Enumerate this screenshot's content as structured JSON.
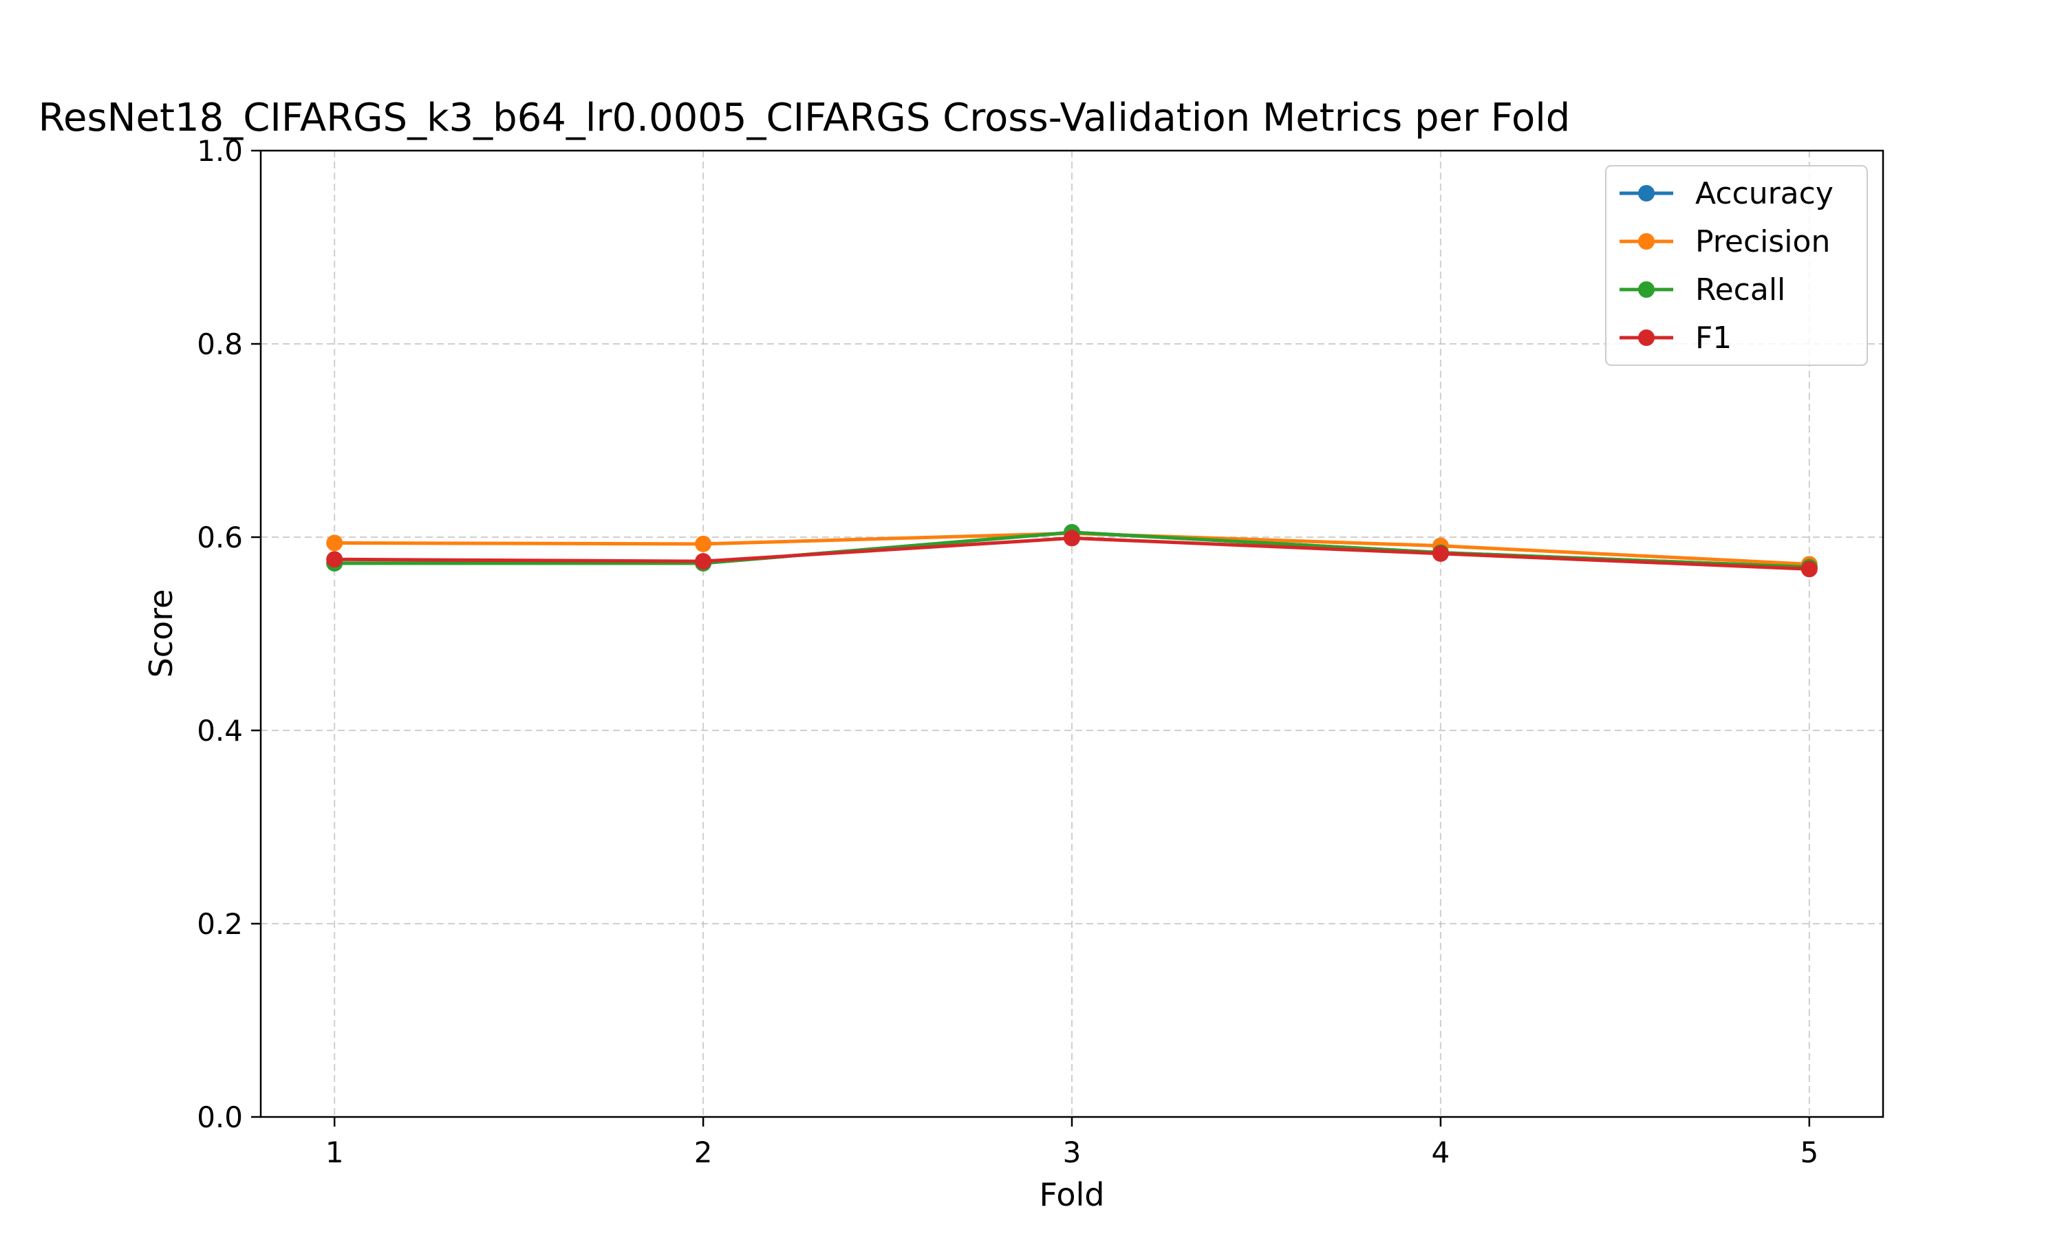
{
  "chart_data": {
    "type": "line",
    "title": "ResNet18_CIFARGS_k3_b64_lr0.0005_CIFARGS Cross-Validation Metrics per Fold",
    "xlabel": "Fold",
    "ylabel": "Score",
    "x": [
      1,
      2,
      3,
      4,
      5
    ],
    "x_tick_labels": [
      "1",
      "2",
      "3",
      "4",
      "5"
    ],
    "xlim": [
      0.8,
      5.2
    ],
    "ylim": [
      0.0,
      1.0
    ],
    "y_ticks": [
      0.0,
      0.2,
      0.4,
      0.6,
      0.8,
      1.0
    ],
    "y_tick_labels": [
      "0.0",
      "0.2",
      "0.4",
      "0.6",
      "0.8",
      "1.0"
    ],
    "grid": true,
    "legend_position": "top-right",
    "series": [
      {
        "name": "Accuracy",
        "color": "#1f77b4",
        "values": [
          0.573,
          0.573,
          0.605,
          0.584,
          0.569
        ]
      },
      {
        "name": "Precision",
        "color": "#ff7f0e",
        "values": [
          0.594,
          0.593,
          0.604,
          0.591,
          0.572
        ]
      },
      {
        "name": "Recall",
        "color": "#2ca02c",
        "values": [
          0.573,
          0.573,
          0.605,
          0.584,
          0.569
        ]
      },
      {
        "name": "F1",
        "color": "#d62728",
        "values": [
          0.577,
          0.575,
          0.599,
          0.583,
          0.567
        ]
      }
    ]
  }
}
